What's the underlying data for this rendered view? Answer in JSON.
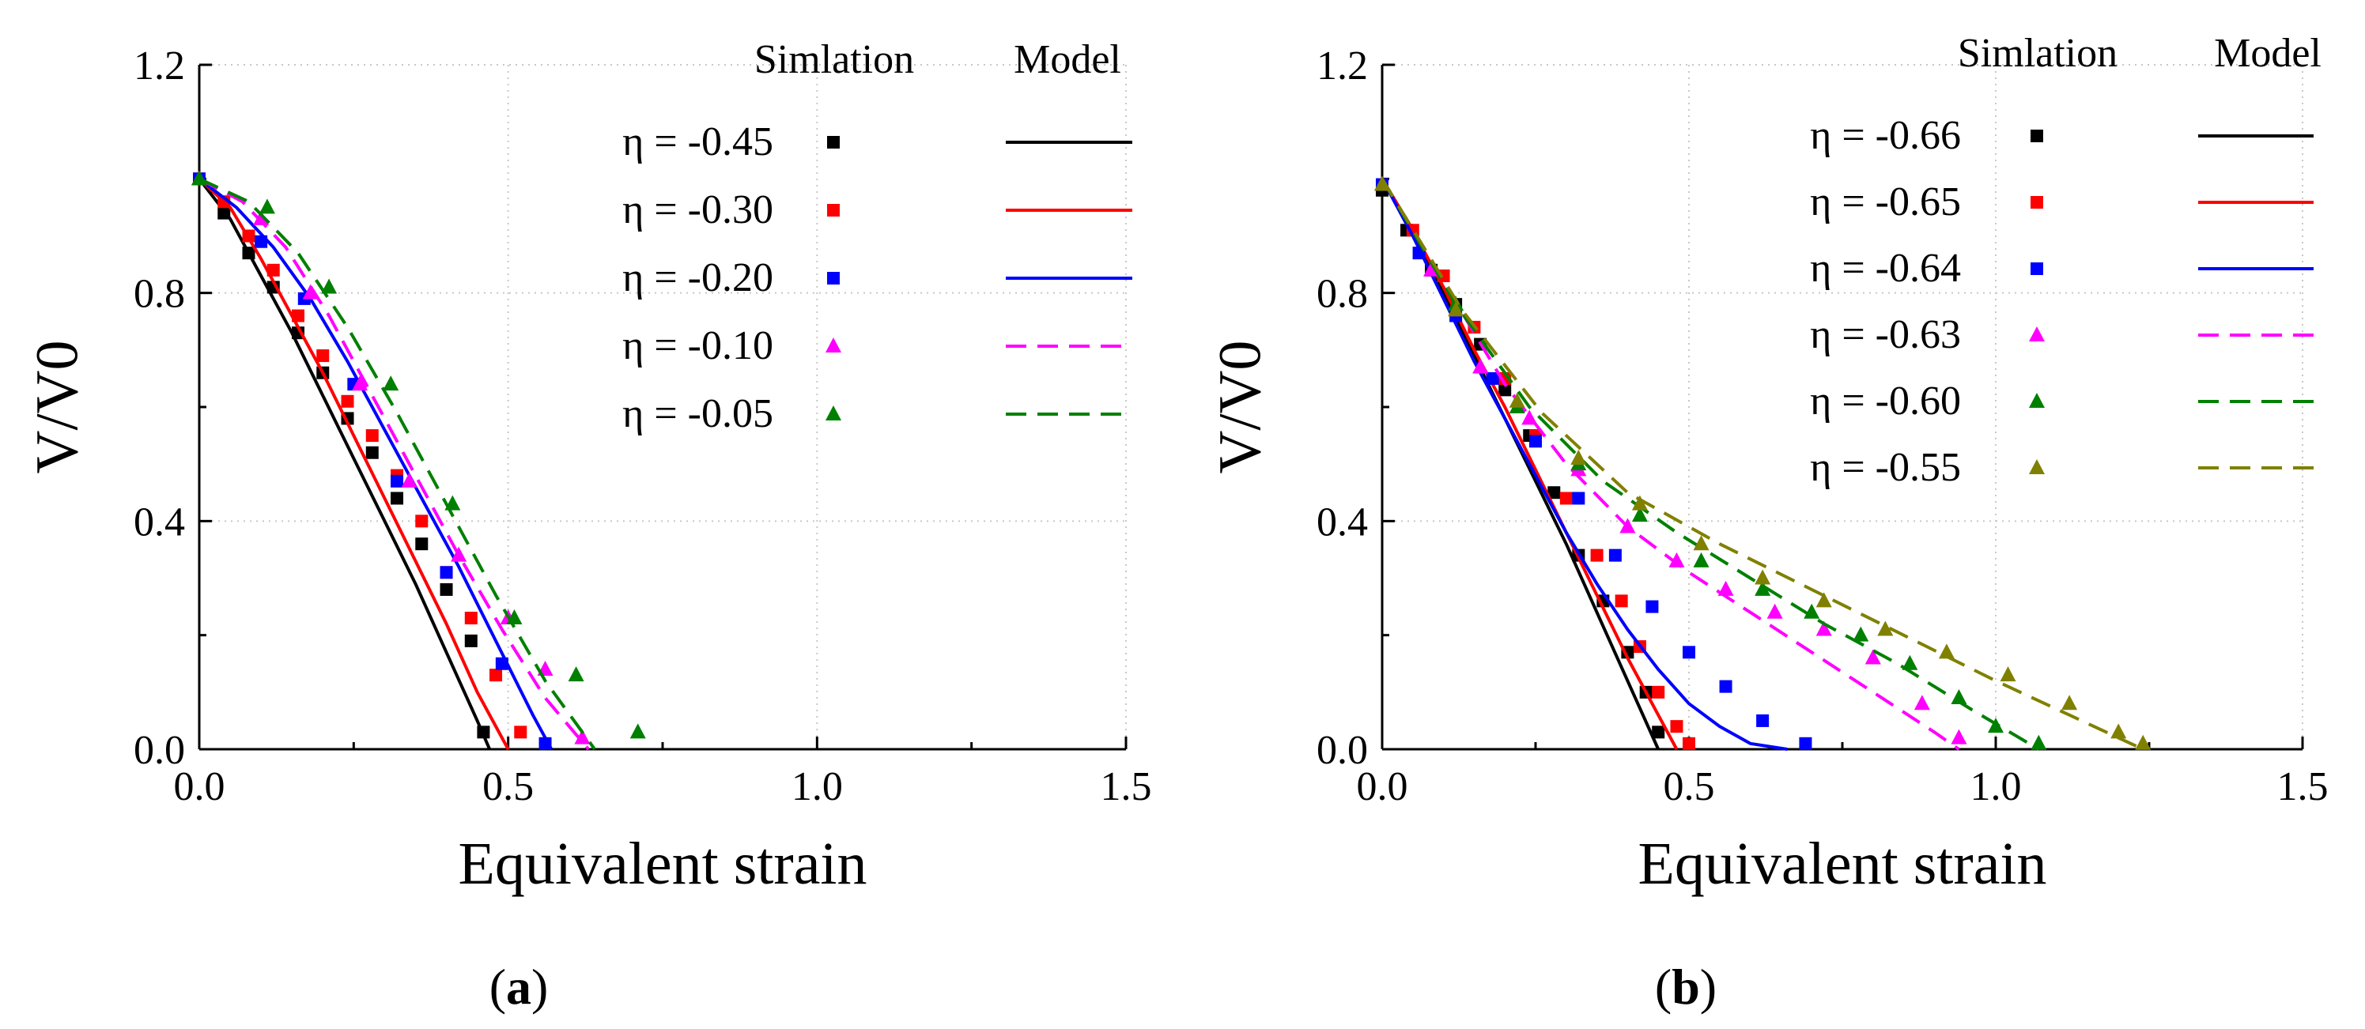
{
  "chart_data": [
    {
      "type": "scatter",
      "panel_label": "a",
      "xlabel": "Equivalent strain",
      "ylabel": "V/V0",
      "xlim": [
        0,
        1.5
      ],
      "ylim": [
        0,
        1.2
      ],
      "xticks": [
        "0.0",
        "0.5",
        "1.0",
        "1.5"
      ],
      "yticks": [
        "0.0",
        "0.4",
        "0.8",
        "1.2"
      ],
      "legend_header_sim": "Simlation",
      "legend_header_model": "Model",
      "series": [
        {
          "name": "η = -0.45",
          "color": "#000000",
          "marker": "square",
          "line": "solid",
          "sim_x": [
            0.0,
            0.04,
            0.08,
            0.12,
            0.16,
            0.2,
            0.24,
            0.28,
            0.32,
            0.36,
            0.4,
            0.44,
            0.46
          ],
          "sim_y": [
            1.0,
            0.94,
            0.87,
            0.81,
            0.73,
            0.66,
            0.58,
            0.52,
            0.44,
            0.36,
            0.28,
            0.19,
            0.03
          ],
          "model_x": [
            0.0,
            0.05,
            0.1,
            0.15,
            0.2,
            0.25,
            0.3,
            0.35,
            0.4,
            0.45,
            0.47
          ],
          "model_y": [
            1.0,
            0.93,
            0.83,
            0.73,
            0.62,
            0.51,
            0.4,
            0.29,
            0.17,
            0.05,
            0.0
          ]
        },
        {
          "name": "η = -0.30",
          "color": "#ff0000",
          "marker": "square",
          "line": "solid",
          "sim_x": [
            0.0,
            0.04,
            0.08,
            0.12,
            0.16,
            0.2,
            0.24,
            0.28,
            0.32,
            0.36,
            0.4,
            0.44,
            0.48,
            0.52
          ],
          "sim_y": [
            1.0,
            0.96,
            0.9,
            0.84,
            0.76,
            0.69,
            0.61,
            0.55,
            0.48,
            0.4,
            0.31,
            0.23,
            0.13,
            0.03
          ],
          "model_x": [
            0.0,
            0.05,
            0.1,
            0.15,
            0.2,
            0.25,
            0.3,
            0.35,
            0.4,
            0.45,
            0.5
          ],
          "model_y": [
            1.0,
            0.95,
            0.86,
            0.76,
            0.66,
            0.55,
            0.44,
            0.33,
            0.22,
            0.1,
            0.0
          ]
        },
        {
          "name": "η = -0.20",
          "color": "#0000ff",
          "marker": "square",
          "line": "solid",
          "sim_x": [
            0.0,
            0.1,
            0.17,
            0.25,
            0.32,
            0.4,
            0.49,
            0.56
          ],
          "sim_y": [
            1.0,
            0.89,
            0.79,
            0.64,
            0.47,
            0.31,
            0.15,
            0.01
          ],
          "model_x": [
            0.0,
            0.06,
            0.12,
            0.18,
            0.24,
            0.3,
            0.36,
            0.42,
            0.48,
            0.54,
            0.57
          ],
          "model_y": [
            1.0,
            0.95,
            0.88,
            0.79,
            0.68,
            0.56,
            0.44,
            0.32,
            0.19,
            0.06,
            0.0
          ]
        },
        {
          "name": "η = -0.10",
          "color": "#ff00ff",
          "marker": "triangle",
          "line": "dash",
          "sim_x": [
            0.0,
            0.1,
            0.18,
            0.26,
            0.34,
            0.42,
            0.5,
            0.56,
            0.62
          ],
          "sim_y": [
            1.0,
            0.93,
            0.8,
            0.64,
            0.47,
            0.34,
            0.23,
            0.14,
            0.02
          ],
          "model_x": [
            0.0,
            0.07,
            0.14,
            0.21,
            0.28,
            0.35,
            0.42,
            0.49,
            0.56,
            0.63
          ],
          "model_y": [
            1.0,
            0.96,
            0.88,
            0.76,
            0.62,
            0.48,
            0.34,
            0.21,
            0.09,
            0.0
          ]
        },
        {
          "name": "η = -0.05",
          "color": "#008000",
          "marker": "triangle",
          "line": "dash",
          "sim_x": [
            0.0,
            0.11,
            0.21,
            0.31,
            0.41,
            0.51,
            0.61,
            0.71
          ],
          "sim_y": [
            1.0,
            0.95,
            0.81,
            0.64,
            0.43,
            0.23,
            0.13,
            0.03
          ],
          "model_x": [
            0.0,
            0.08,
            0.16,
            0.24,
            0.32,
            0.4,
            0.48,
            0.56,
            0.64
          ],
          "model_y": [
            1.0,
            0.96,
            0.87,
            0.74,
            0.59,
            0.43,
            0.27,
            0.12,
            0.0
          ]
        }
      ]
    },
    {
      "type": "scatter",
      "panel_label": "b",
      "xlabel": "Equivalent strain",
      "ylabel": "V/V0",
      "xlim": [
        0,
        1.5
      ],
      "ylim": [
        0,
        1.2
      ],
      "xticks": [
        "0.0",
        "0.5",
        "1.0",
        "1.5"
      ],
      "yticks": [
        "0.0",
        "0.4",
        "0.8",
        "1.2"
      ],
      "legend_header_sim": "Simlation",
      "legend_header_model": "Model",
      "series": [
        {
          "name": "η = -0.66",
          "color": "#000000",
          "marker": "square",
          "line": "solid",
          "sim_x": [
            0.0,
            0.04,
            0.08,
            0.12,
            0.16,
            0.2,
            0.24,
            0.28,
            0.32,
            0.36,
            0.4,
            0.43,
            0.45
          ],
          "sim_y": [
            0.98,
            0.91,
            0.84,
            0.78,
            0.71,
            0.63,
            0.55,
            0.45,
            0.34,
            0.26,
            0.17,
            0.1,
            0.03
          ],
          "model_x": [
            0.0,
            0.05,
            0.1,
            0.15,
            0.2,
            0.25,
            0.3,
            0.35,
            0.4,
            0.45
          ],
          "model_y": [
            1.0,
            0.91,
            0.8,
            0.69,
            0.58,
            0.47,
            0.36,
            0.24,
            0.12,
            0.0
          ]
        },
        {
          "name": "η = -0.65",
          "color": "#ff0000",
          "marker": "square",
          "line": "solid",
          "sim_x": [
            0.0,
            0.05,
            0.1,
            0.15,
            0.2,
            0.25,
            0.3,
            0.35,
            0.39,
            0.42,
            0.45,
            0.48,
            0.5
          ],
          "sim_y": [
            0.99,
            0.91,
            0.83,
            0.74,
            0.65,
            0.55,
            0.44,
            0.34,
            0.26,
            0.18,
            0.1,
            0.04,
            0.01
          ],
          "model_x": [
            0.0,
            0.05,
            0.1,
            0.15,
            0.2,
            0.25,
            0.3,
            0.35,
            0.4,
            0.45,
            0.48
          ],
          "model_y": [
            1.0,
            0.91,
            0.81,
            0.7,
            0.6,
            0.49,
            0.38,
            0.27,
            0.16,
            0.06,
            0.0
          ]
        },
        {
          "name": "η = -0.64",
          "color": "#0000ff",
          "marker": "square",
          "line": "solid",
          "sim_x": [
            0.0,
            0.06,
            0.12,
            0.18,
            0.25,
            0.32,
            0.38,
            0.44,
            0.5,
            0.56,
            0.62,
            0.69
          ],
          "sim_y": [
            0.99,
            0.87,
            0.76,
            0.65,
            0.54,
            0.44,
            0.34,
            0.25,
            0.17,
            0.11,
            0.05,
            0.01
          ],
          "model_x": [
            0.0,
            0.05,
            0.1,
            0.15,
            0.2,
            0.25,
            0.3,
            0.35,
            0.4,
            0.45,
            0.5,
            0.55,
            0.6,
            0.66
          ],
          "model_y": [
            1.0,
            0.9,
            0.79,
            0.68,
            0.58,
            0.48,
            0.38,
            0.29,
            0.21,
            0.14,
            0.08,
            0.04,
            0.01,
            0.0
          ]
        },
        {
          "name": "η = -0.63",
          "color": "#ff00ff",
          "marker": "triangle",
          "line": "dash",
          "sim_x": [
            0.0,
            0.08,
            0.16,
            0.24,
            0.32,
            0.4,
            0.48,
            0.56,
            0.64,
            0.72,
            0.8,
            0.88,
            0.94
          ],
          "sim_y": [
            0.99,
            0.84,
            0.67,
            0.58,
            0.49,
            0.39,
            0.33,
            0.28,
            0.24,
            0.21,
            0.16,
            0.08,
            0.02
          ],
          "model_x": [
            0.0,
            0.1,
            0.2,
            0.3,
            0.4,
            0.5,
            0.6,
            0.7,
            0.8,
            0.9,
            0.94
          ],
          "model_y": [
            1.0,
            0.82,
            0.64,
            0.5,
            0.39,
            0.31,
            0.24,
            0.17,
            0.1,
            0.03,
            0.0
          ]
        },
        {
          "name": "η = -0.60",
          "color": "#008000",
          "marker": "triangle",
          "line": "dash",
          "sim_x": [
            0.0,
            0.12,
            0.22,
            0.32,
            0.42,
            0.52,
            0.62,
            0.7,
            0.78,
            0.86,
            0.94,
            1.0,
            1.07
          ],
          "sim_y": [
            0.99,
            0.78,
            0.6,
            0.5,
            0.41,
            0.33,
            0.28,
            0.24,
            0.2,
            0.15,
            0.09,
            0.04,
            0.01
          ],
          "model_x": [
            0.0,
            0.12,
            0.24,
            0.36,
            0.48,
            0.6,
            0.72,
            0.84,
            0.96,
            1.07
          ],
          "model_y": [
            1.0,
            0.78,
            0.6,
            0.47,
            0.38,
            0.3,
            0.22,
            0.15,
            0.07,
            0.0
          ]
        },
        {
          "name": "η = -0.55",
          "color": "#808000",
          "marker": "triangle",
          "line": "dash",
          "sim_x": [
            0.0,
            0.12,
            0.22,
            0.32,
            0.42,
            0.52,
            0.62,
            0.72,
            0.82,
            0.92,
            1.02,
            1.12,
            1.2,
            1.24
          ],
          "sim_y": [
            0.99,
            0.77,
            0.61,
            0.51,
            0.43,
            0.36,
            0.3,
            0.26,
            0.21,
            0.17,
            0.13,
            0.08,
            0.03,
            0.01
          ],
          "model_x": [
            0.0,
            0.13,
            0.26,
            0.4,
            0.55,
            0.7,
            0.85,
            1.0,
            1.12,
            1.24
          ],
          "model_y": [
            1.0,
            0.77,
            0.59,
            0.45,
            0.36,
            0.28,
            0.2,
            0.12,
            0.06,
            0.0
          ]
        }
      ]
    }
  ]
}
